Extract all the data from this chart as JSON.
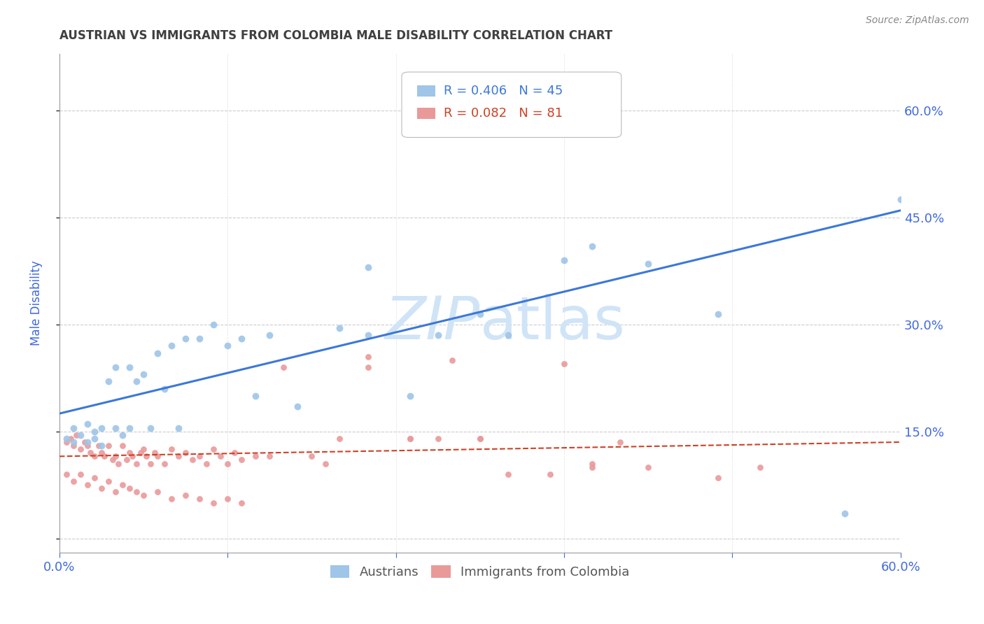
{
  "title": "AUSTRIAN VS IMMIGRANTS FROM COLOMBIA MALE DISABILITY CORRELATION CHART",
  "source": "Source: ZipAtlas.com",
  "ylabel": "Male Disability",
  "xlim": [
    0.0,
    0.6
  ],
  "ylim": [
    -0.02,
    0.68
  ],
  "yticks": [
    0.0,
    0.15,
    0.3,
    0.45,
    0.6
  ],
  "xticks": [
    0.0,
    0.12,
    0.24,
    0.36,
    0.48,
    0.6
  ],
  "xtick_labels": [
    "0.0%",
    "",
    "",
    "",
    "",
    "60.0%"
  ],
  "ytick_labels": [
    "",
    "15.0%",
    "30.0%",
    "45.0%",
    "60.0%"
  ],
  "blue_color": "#9fc5e8",
  "pink_color": "#ea9999",
  "trend_blue": "#3c78d8",
  "trend_pink": "#cc4125",
  "axis_label_color": "#4169e1",
  "tick_color": "#4169e1",
  "title_color": "#404040",
  "watermark_color": "#d0e4f7",
  "legend_R_blue": "R = 0.406",
  "legend_N_blue": "N = 45",
  "legend_R_pink": "R = 0.082",
  "legend_N_pink": "N = 81",
  "blue_scatter_x": [
    0.005,
    0.01,
    0.01,
    0.015,
    0.02,
    0.02,
    0.025,
    0.025,
    0.03,
    0.03,
    0.035,
    0.04,
    0.04,
    0.045,
    0.05,
    0.05,
    0.055,
    0.06,
    0.065,
    0.07,
    0.075,
    0.08,
    0.085,
    0.09,
    0.1,
    0.11,
    0.12,
    0.13,
    0.14,
    0.15,
    0.17,
    0.2,
    0.22,
    0.25,
    0.27,
    0.3,
    0.32,
    0.36,
    0.38,
    0.42,
    0.47,
    0.3,
    0.56,
    0.6,
    0.22
  ],
  "blue_scatter_y": [
    0.14,
    0.155,
    0.135,
    0.145,
    0.16,
    0.135,
    0.15,
    0.14,
    0.155,
    0.13,
    0.22,
    0.24,
    0.155,
    0.145,
    0.24,
    0.155,
    0.22,
    0.23,
    0.155,
    0.26,
    0.21,
    0.27,
    0.155,
    0.28,
    0.28,
    0.3,
    0.27,
    0.28,
    0.2,
    0.285,
    0.185,
    0.295,
    0.285,
    0.2,
    0.285,
    0.315,
    0.285,
    0.39,
    0.41,
    0.385,
    0.315,
    0.615,
    0.035,
    0.475,
    0.38
  ],
  "pink_scatter_x": [
    0.005,
    0.008,
    0.01,
    0.012,
    0.015,
    0.018,
    0.02,
    0.022,
    0.025,
    0.028,
    0.03,
    0.032,
    0.035,
    0.038,
    0.04,
    0.042,
    0.045,
    0.048,
    0.05,
    0.052,
    0.055,
    0.058,
    0.06,
    0.062,
    0.065,
    0.068,
    0.07,
    0.075,
    0.08,
    0.085,
    0.09,
    0.095,
    0.1,
    0.105,
    0.11,
    0.115,
    0.12,
    0.125,
    0.13,
    0.14,
    0.15,
    0.16,
    0.18,
    0.19,
    0.2,
    0.22,
    0.25,
    0.27,
    0.3,
    0.32,
    0.35,
    0.38,
    0.4,
    0.22,
    0.25,
    0.28,
    0.3,
    0.36,
    0.38,
    0.42,
    0.47,
    0.5,
    0.005,
    0.01,
    0.015,
    0.02,
    0.025,
    0.03,
    0.035,
    0.04,
    0.045,
    0.05,
    0.055,
    0.06,
    0.07,
    0.08,
    0.09,
    0.1,
    0.11,
    0.12,
    0.13
  ],
  "pink_scatter_y": [
    0.135,
    0.14,
    0.13,
    0.145,
    0.125,
    0.135,
    0.13,
    0.12,
    0.115,
    0.13,
    0.12,
    0.115,
    0.13,
    0.11,
    0.115,
    0.105,
    0.13,
    0.11,
    0.12,
    0.115,
    0.105,
    0.12,
    0.125,
    0.115,
    0.105,
    0.12,
    0.115,
    0.105,
    0.125,
    0.115,
    0.12,
    0.11,
    0.115,
    0.105,
    0.125,
    0.115,
    0.105,
    0.12,
    0.11,
    0.115,
    0.115,
    0.24,
    0.115,
    0.105,
    0.14,
    0.24,
    0.14,
    0.14,
    0.14,
    0.09,
    0.09,
    0.105,
    0.135,
    0.255,
    0.14,
    0.25,
    0.14,
    0.245,
    0.1,
    0.1,
    0.085,
    0.1,
    0.09,
    0.08,
    0.09,
    0.075,
    0.085,
    0.07,
    0.08,
    0.065,
    0.075,
    0.07,
    0.065,
    0.06,
    0.065,
    0.055,
    0.06,
    0.055,
    0.05,
    0.055,
    0.05
  ],
  "blue_trend_x": [
    0.0,
    0.6
  ],
  "blue_trend_y": [
    0.175,
    0.46
  ],
  "pink_trend_x": [
    0.0,
    0.6
  ],
  "pink_trend_y": [
    0.115,
    0.135
  ]
}
